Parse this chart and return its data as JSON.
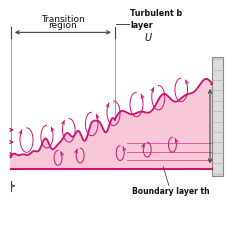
{
  "bg_color": "#ffffff",
  "fill_color": "#f8c8d8",
  "border_color": "#cc1177",
  "arrow_color": "#cc1177",
  "line_color": "#444444",
  "text_color": "#111111",
  "title1": "Transition",
  "title2": "region",
  "label_turbulent1": "Turbulent b",
  "label_turbulent2": "layer",
  "label_U": "U",
  "label_boundary": "Boundary layer th",
  "fig_width": 2.5,
  "fig_height": 2.45,
  "dpi": 100
}
